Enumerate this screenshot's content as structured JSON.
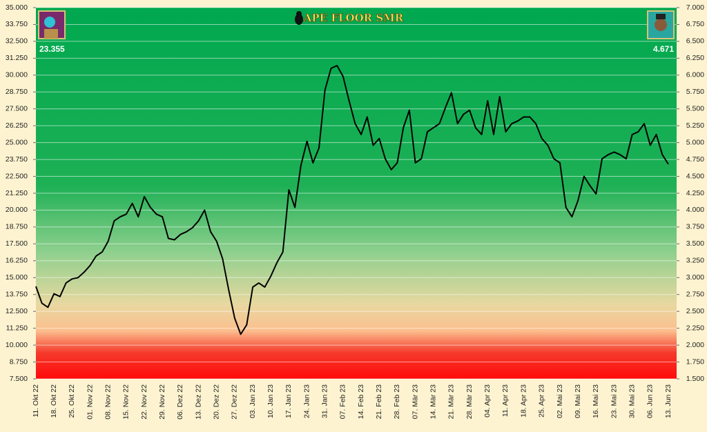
{
  "chart_data": {
    "type": "line",
    "title": "APE FLOOR SMR",
    "annotations": [
      "23.355",
      "4.671"
    ],
    "color": "#000000",
    "grid": true,
    "categories": [
      "11. Okt 22",
      null,
      null,
      "18. Okt 22",
      null,
      null,
      "25. Okt 22",
      null,
      null,
      "01. Nov 22",
      null,
      null,
      "08. Nov 22",
      null,
      null,
      "15. Nov 22",
      null,
      null,
      "22. Nov 22",
      null,
      null,
      "29. Nov 22",
      null,
      null,
      "06. Dez 22",
      null,
      null,
      "13. Dez 22",
      null,
      null,
      "20. Dez 22",
      null,
      null,
      "27. Dez 22",
      null,
      null,
      "03. Jan 23",
      null,
      null,
      "10. Jan 23",
      null,
      null,
      "17. Jan 23",
      null,
      null,
      "24. Jan 23",
      null,
      null,
      "31. Jan 23",
      null,
      null,
      "07. Feb 23",
      null,
      null,
      "14. Feb 23",
      null,
      null,
      "21. Feb 23",
      null,
      null,
      "28. Feb 23",
      null,
      null,
      "07. Mär 23",
      null,
      null,
      "14. Mär 23",
      null,
      null,
      "21. Mär 23",
      null,
      null,
      "28. Mär 23",
      null,
      null,
      "04. Apr 23",
      null,
      null,
      "11. Apr 23",
      null,
      null,
      "18. Apr 23",
      null,
      null,
      "25. Apr 23",
      null,
      null,
      "02. Mai 23",
      null,
      null,
      "09. Mai 23",
      null,
      null,
      "16. Mai 23",
      null,
      null,
      "23. Mai 23",
      null,
      null,
      "30. Mai 23",
      null,
      null,
      "06. Jun 23",
      null,
      null,
      "13. Jun 23"
    ],
    "values": [
      14.35,
      13.1,
      12.8,
      13.8,
      13.6,
      14.6,
      14.9,
      15.0,
      15.4,
      15.9,
      16.6,
      16.9,
      17.7,
      19.2,
      19.5,
      19.7,
      20.5,
      19.5,
      21.0,
      20.2,
      19.7,
      19.5,
      17.9,
      17.8,
      18.2,
      18.4,
      18.7,
      19.2,
      20.0,
      18.4,
      17.7,
      16.4,
      14.1,
      12.0,
      10.8,
      11.5,
      14.3,
      14.6,
      14.3,
      15.1,
      16.1,
      16.9,
      21.5,
      20.2,
      23.3,
      25.1,
      23.5,
      24.6,
      28.9,
      30.5,
      30.7,
      29.9,
      28.1,
      26.4,
      25.6,
      26.9,
      24.8,
      25.3,
      23.8,
      23.0,
      23.5,
      26.1,
      27.4,
      23.5,
      23.8,
      25.8,
      26.1,
      26.4,
      27.6,
      28.7,
      26.4,
      27.1,
      27.4,
      26.1,
      25.6,
      28.1,
      25.6,
      28.4,
      25.8,
      26.4,
      26.6,
      26.9,
      26.9,
      26.4,
      25.3,
      24.8,
      23.8,
      23.5,
      20.2,
      19.5,
      20.7,
      22.5,
      21.8,
      21.2,
      23.8,
      24.1,
      24.3,
      24.1,
      23.8,
      25.6,
      25.8,
      26.4,
      24.8,
      25.6,
      24.1,
      23.4
    ],
    "ylim": [
      7.5,
      35
    ],
    "yticks": [
      {
        "value": 7.5,
        "label": "7.500"
      },
      {
        "value": 8.75,
        "label": "8.750"
      },
      {
        "value": 10,
        "label": "10.000"
      },
      {
        "value": 11.25,
        "label": "11.250"
      },
      {
        "value": 12.5,
        "label": "12.500"
      },
      {
        "value": 13.75,
        "label": "13.750"
      },
      {
        "value": 15,
        "label": "15.000"
      },
      {
        "value": 16.25,
        "label": "16.250"
      },
      {
        "value": 17.5,
        "label": "17.500"
      },
      {
        "value": 18.75,
        "label": "18.750"
      },
      {
        "value": 20,
        "label": "20.000"
      },
      {
        "value": 21.25,
        "label": "21.250"
      },
      {
        "value": 22.5,
        "label": "22.500"
      },
      {
        "value": 23.75,
        "label": "23.750"
      },
      {
        "value": 25,
        "label": "25.000"
      },
      {
        "value": 26.25,
        "label": "26.250"
      },
      {
        "value": 27.5,
        "label": "27.500"
      },
      {
        "value": 28.75,
        "label": "28.750"
      },
      {
        "value": 30,
        "label": "30.000"
      },
      {
        "value": 31.25,
        "label": "31.250"
      },
      {
        "value": 32.5,
        "label": "32.500"
      },
      {
        "value": 33.75,
        "label": "33.750"
      },
      {
        "value": 35,
        "label": "35.000"
      }
    ],
    "y2lim": [
      1.5,
      7
    ],
    "y2ticks": [
      {
        "value": 1.5,
        "label": "1.500"
      },
      {
        "value": 1.75,
        "label": "1.750"
      },
      {
        "value": 2,
        "label": "2.000"
      },
      {
        "value": 2.25,
        "label": "2.250"
      },
      {
        "value": 2.5,
        "label": "2.500"
      },
      {
        "value": 2.75,
        "label": "2.750"
      },
      {
        "value": 3,
        "label": "3.000"
      },
      {
        "value": 3.25,
        "label": "3.250"
      },
      {
        "value": 3.5,
        "label": "3.500"
      },
      {
        "value": 3.75,
        "label": "3.750"
      },
      {
        "value": 4,
        "label": "4.000"
      },
      {
        "value": 4.25,
        "label": "4.250"
      },
      {
        "value": 4.5,
        "label": "4.500"
      },
      {
        "value": 4.75,
        "label": "4.750"
      },
      {
        "value": 5,
        "label": "5.000"
      },
      {
        "value": 5.25,
        "label": "5.250"
      },
      {
        "value": 5.5,
        "label": "5.500"
      },
      {
        "value": 5.75,
        "label": "5.750"
      },
      {
        "value": 6,
        "label": "6.000"
      },
      {
        "value": 6.25,
        "label": "6.250"
      },
      {
        "value": 6.5,
        "label": "6.500"
      },
      {
        "value": 6.75,
        "label": "6.750"
      },
      {
        "value": 7,
        "label": "7.000"
      }
    ]
  }
}
